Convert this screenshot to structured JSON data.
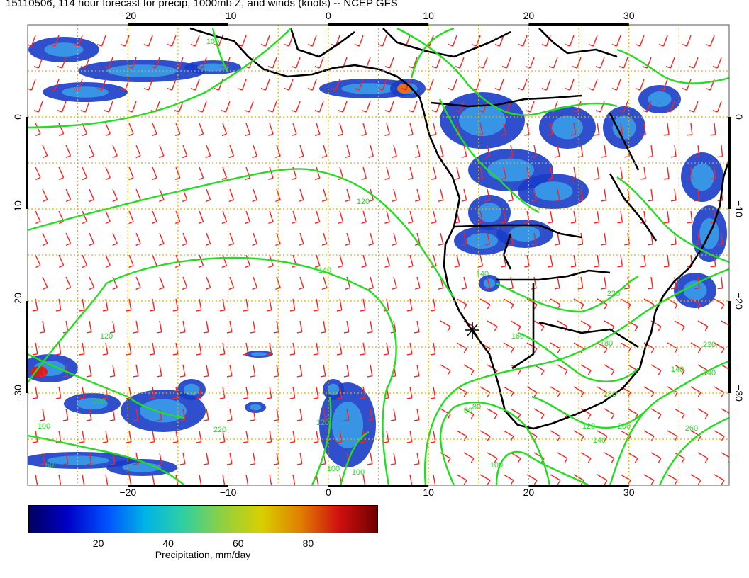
{
  "title": "15110506, 114 hour forecast for precip, 1000mb Z, and winds (knots) -- NCEP GFS",
  "map": {
    "lon_range": [
      -30,
      40
    ],
    "lat_range": [
      -40,
      10
    ],
    "lon_ticks": [
      -20,
      -10,
      0,
      10,
      20,
      30
    ],
    "lat_ticks": [
      0,
      -10,
      -20,
      -30
    ],
    "lon_tick_labels": [
      "−20",
      "−10",
      "0",
      "10",
      "20",
      "30"
    ],
    "lat_tick_labels": [
      "0",
      "−10",
      "−20",
      "−30"
    ],
    "contour_labels": [
      "100",
      "120",
      "140",
      "120",
      "140",
      "160",
      "180",
      "220",
      "220",
      "100",
      "140",
      "60",
      "80",
      "100",
      "120",
      "140",
      "180",
      "200",
      "260",
      "240",
      "200",
      "220",
      "120",
      "100",
      "100",
      "60",
      "100"
    ],
    "colors": {
      "barbs": "#ff2020",
      "contours": "#22dd22",
      "coast": "#000000",
      "grid": "#e0b000"
    }
  },
  "colorbar": {
    "range": [
      0,
      100
    ],
    "ticks": [
      "20",
      "40",
      "60",
      "80"
    ],
    "label": "Precipitation, mm/day"
  }
}
